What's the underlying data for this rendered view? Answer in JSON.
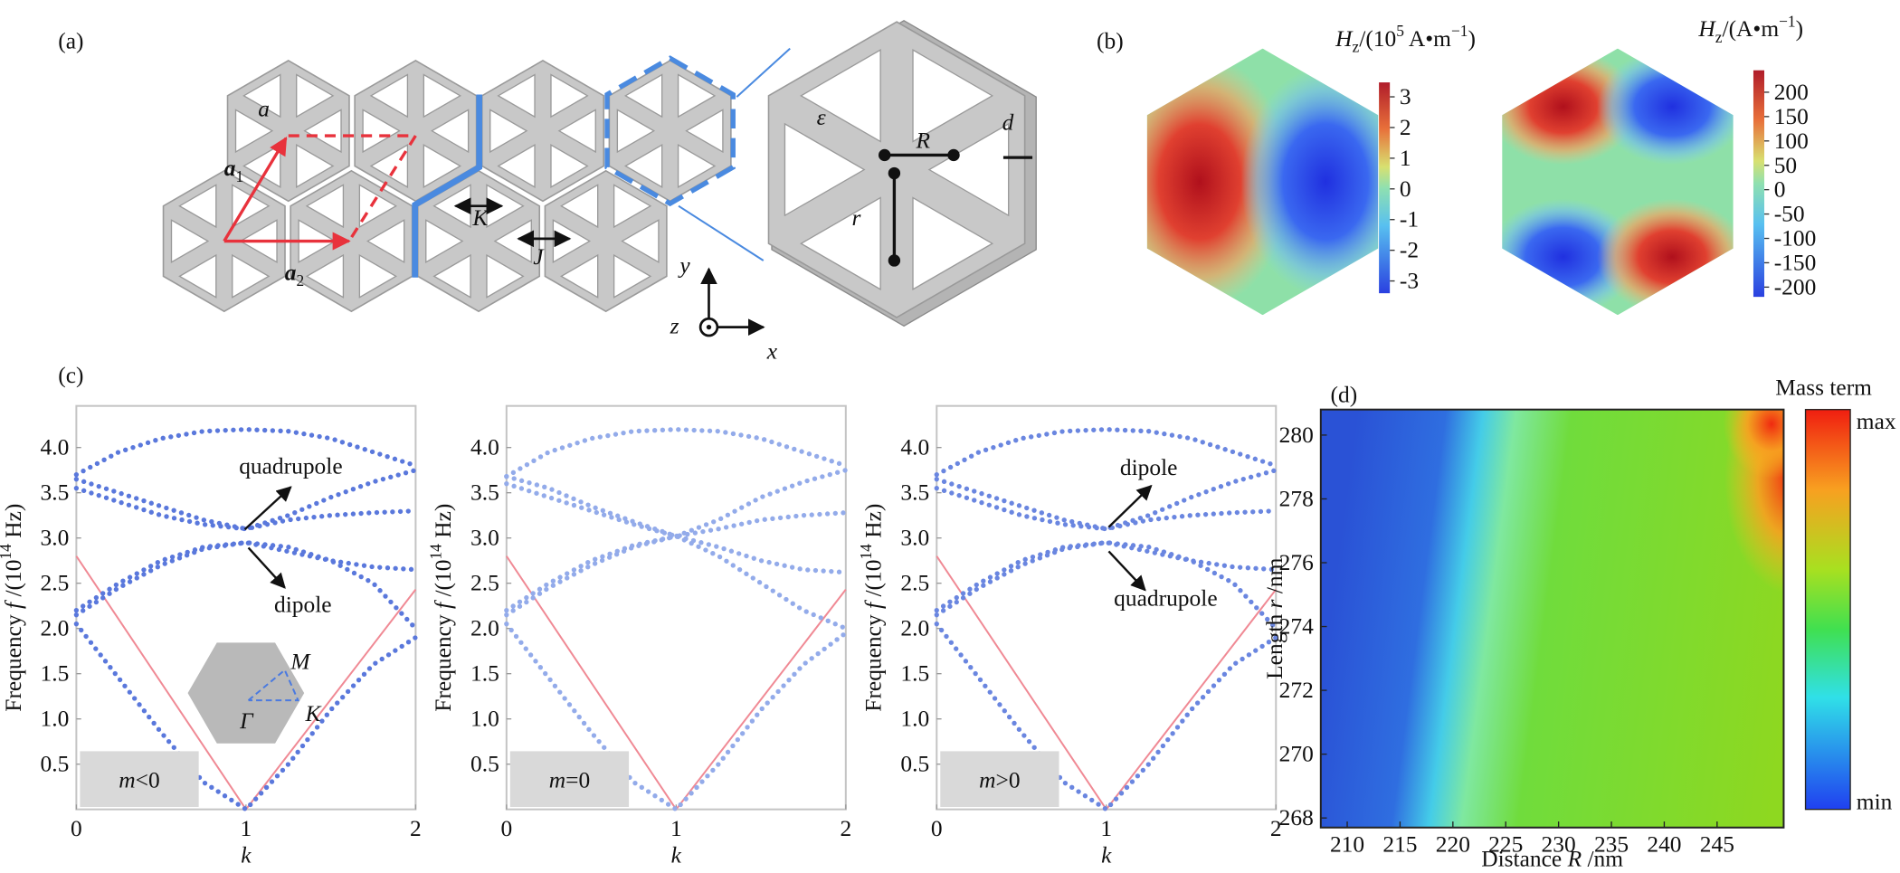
{
  "panel_labels": [
    "(a)",
    "(b)",
    "(c)",
    "(d)"
  ],
  "panel_a": {
    "labels": [
      [
        {
          "text": "a",
          "italic": true
        }
      ],
      [
        {
          "text": "a",
          "italic": true,
          "bold": true
        },
        {
          "text": "1",
          "sub": true
        }
      ],
      [
        {
          "text": "a",
          "italic": true,
          "bold": true
        },
        {
          "text": "2",
          "sub": true
        }
      ],
      [
        {
          "text": "K",
          "italic": true
        }
      ],
      [
        {
          "text": "J",
          "italic": true
        }
      ],
      [
        {
          "text": "y",
          "italic": true
        }
      ],
      [
        {
          "text": "z",
          "italic": true
        }
      ],
      [
        {
          "text": "x",
          "italic": true
        }
      ],
      [
        {
          "text": "ε",
          "italic": true
        }
      ],
      [
        {
          "text": "R",
          "italic": true
        }
      ],
      [
        {
          "text": "r",
          "italic": true
        }
      ],
      [
        {
          "text": "d",
          "italic": true
        }
      ]
    ]
  },
  "panel_b": {
    "maps": [
      {
        "title": [
          {
            "text": "H",
            "italic": true
          },
          {
            "text": "z",
            "sub": true
          },
          {
            "text": "/(10"
          },
          {
            "text": "5",
            "sup": true
          },
          {
            "text": " A•m"
          },
          {
            "text": "−1",
            "sup": true
          },
          {
            "text": ")"
          }
        ],
        "clim": [
          -3.4,
          3.47
        ],
        "ticks": [
          3,
          2,
          1,
          0,
          -1,
          -2,
          -3
        ]
      },
      {
        "title": [
          {
            "text": "H",
            "italic": true
          },
          {
            "text": "z",
            "sub": true
          },
          {
            "text": "/(A•m"
          },
          {
            "text": "−1",
            "sup": true
          },
          {
            "text": ")"
          }
        ],
        "clim": [
          -220,
          245
        ],
        "ticks": [
          200,
          150,
          100,
          50,
          0,
          -50,
          -100,
          -150,
          -200
        ]
      }
    ]
  },
  "chart_data": [
    {
      "type": "line",
      "ylabel": [
        {
          "text": "Frequency "
        },
        {
          "text": "f",
          "italic": true
        },
        {
          "text": " /(10"
        },
        {
          "text": "14",
          "sup": true
        },
        {
          "text": " Hz)"
        }
      ],
      "xlabel": [
        {
          "text": "k",
          "italic": true
        }
      ],
      "xlim": [
        0,
        2
      ],
      "xticks": [
        0,
        1,
        2
      ],
      "ylim": [
        0,
        4.46
      ],
      "yticks": [
        0.5,
        {
          "value": 1,
          "label": "1.0"
        },
        1.5,
        {
          "value": 2,
          "label": "2.0"
        },
        2.5,
        {
          "value": 3,
          "label": "3.0"
        },
        3.5,
        {
          "value": 4,
          "label": "4.0"
        }
      ],
      "x": [
        0,
        0.25,
        0.5,
        0.75,
        1,
        1.25,
        1.5,
        1.75,
        2
      ],
      "series": [
        {
          "color": "#5a78dc",
          "values": [
            2.05,
            1.45,
            0.85,
            0.3,
            0,
            0.5,
            1.1,
            1.6,
            1.9
          ]
        },
        {
          "color": "#5a78dc",
          "values": [
            2.2,
            2.5,
            2.75,
            2.9,
            2.95,
            2.9,
            2.75,
            2.5,
            2.0
          ]
        },
        {
          "color": "#5a78dc",
          "values": [
            2.15,
            2.45,
            2.7,
            2.88,
            2.95,
            2.85,
            2.75,
            2.68,
            2.65
          ]
        },
        {
          "color": "#5a78dc",
          "values": [
            3.55,
            3.4,
            3.25,
            3.15,
            3.1,
            3.2,
            3.25,
            3.28,
            3.3
          ]
        },
        {
          "color": "#5a78dc",
          "values": [
            3.65,
            3.5,
            3.35,
            3.2,
            3.1,
            3.25,
            3.45,
            3.62,
            3.75
          ]
        },
        {
          "color": "#5a78dc",
          "values": [
            3.7,
            3.95,
            4.1,
            4.18,
            4.2,
            4.18,
            4.1,
            3.95,
            3.8
          ]
        }
      ],
      "light_line": {
        "x": [
          0,
          1,
          2
        ],
        "values": [
          2.8,
          0,
          2.43
        ],
        "color": "#f08a95"
      },
      "box_label": [
        {
          "text": "m",
          "italic": true
        },
        {
          "text": "<0"
        }
      ],
      "annotations": [
        "quadrupole",
        "dipole"
      ],
      "inset_labels": [
        "M",
        "Γ",
        "K"
      ]
    },
    {
      "type": "line",
      "ylabel": [
        {
          "text": "Frequency "
        },
        {
          "text": "f",
          "italic": true
        },
        {
          "text": " /(10"
        },
        {
          "text": "14",
          "sup": true
        },
        {
          "text": " Hz)"
        }
      ],
      "xlabel": [
        {
          "text": "k",
          "italic": true
        }
      ],
      "xlim": [
        0,
        2
      ],
      "xticks": [
        0,
        1,
        2
      ],
      "ylim": [
        0,
        4.46
      ],
      "yticks": [
        0.5,
        {
          "value": 1,
          "label": "1.0"
        },
        1.5,
        {
          "value": 2,
          "label": "2.0"
        },
        2.5,
        {
          "value": 3,
          "label": "3.0"
        },
        3.5,
        {
          "value": 4,
          "label": "4.0"
        }
      ],
      "x": [
        0,
        0.25,
        0.5,
        0.75,
        1,
        1.25,
        1.5,
        1.75,
        2
      ],
      "series": [
        {
          "color": "#93abea",
          "values": [
            2.05,
            1.45,
            0.85,
            0.3,
            0,
            0.5,
            1.1,
            1.6,
            1.95
          ]
        },
        {
          "color": "#93abea",
          "values": [
            2.15,
            2.45,
            2.7,
            2.9,
            3.02,
            3.2,
            3.45,
            3.62,
            3.75
          ]
        },
        {
          "color": "#93abea",
          "values": [
            2.2,
            2.5,
            2.75,
            2.92,
            3.02,
            2.9,
            2.75,
            2.65,
            2.62
          ]
        },
        {
          "color": "#93abea",
          "values": [
            3.6,
            3.45,
            3.3,
            3.15,
            3.02,
            3.1,
            3.2,
            3.25,
            3.28
          ]
        },
        {
          "color": "#93abea",
          "values": [
            3.68,
            3.55,
            3.35,
            3.18,
            3.02,
            2.8,
            2.5,
            2.2,
            2.0
          ]
        },
        {
          "color": "#93abea",
          "values": [
            3.68,
            3.95,
            4.1,
            4.18,
            4.2,
            4.18,
            4.1,
            3.95,
            3.8
          ]
        }
      ],
      "light_line": {
        "x": [
          0,
          1,
          2
        ],
        "values": [
          2.8,
          0,
          2.43
        ],
        "color": "#f08a95"
      },
      "box_label": [
        {
          "text": "m",
          "italic": true
        },
        {
          "text": "=0"
        }
      ]
    },
    {
      "type": "line",
      "ylabel": [
        {
          "text": "Frequency "
        },
        {
          "text": "f",
          "italic": true
        },
        {
          "text": " /(10"
        },
        {
          "text": "14",
          "sup": true
        },
        {
          "text": " Hz)"
        }
      ],
      "xlabel": [
        {
          "text": "k",
          "italic": true
        }
      ],
      "xlim": [
        0,
        2
      ],
      "xticks": [
        0,
        1,
        2
      ],
      "ylim": [
        0,
        4.46
      ],
      "yticks": [
        0.5,
        {
          "value": 1,
          "label": "1.0"
        },
        1.5,
        {
          "value": 2,
          "label": "2.0"
        },
        2.5,
        {
          "value": 3,
          "label": "3.0"
        },
        3.5,
        {
          "value": 4,
          "label": "4.0"
        }
      ],
      "x": [
        0,
        0.25,
        0.5,
        0.75,
        1,
        1.25,
        1.5,
        1.75,
        2
      ],
      "series": [
        {
          "color": "#6a86e0",
          "values": [
            2.05,
            1.45,
            0.85,
            0.3,
            0,
            0.5,
            1.1,
            1.6,
            1.9
          ]
        },
        {
          "color": "#6a86e0",
          "values": [
            2.2,
            2.5,
            2.75,
            2.9,
            2.95,
            2.9,
            2.75,
            2.5,
            2.0
          ]
        },
        {
          "color": "#6a86e0",
          "values": [
            2.15,
            2.45,
            2.7,
            2.88,
            2.95,
            2.85,
            2.75,
            2.68,
            2.65
          ]
        },
        {
          "color": "#6a86e0",
          "values": [
            3.55,
            3.4,
            3.25,
            3.15,
            3.1,
            3.2,
            3.25,
            3.28,
            3.3
          ]
        },
        {
          "color": "#6a86e0",
          "values": [
            3.65,
            3.5,
            3.35,
            3.2,
            3.1,
            3.25,
            3.45,
            3.62,
            3.75
          ]
        },
        {
          "color": "#6a86e0",
          "values": [
            3.7,
            3.95,
            4.1,
            4.18,
            4.2,
            4.18,
            4.1,
            3.95,
            3.8
          ]
        }
      ],
      "light_line": {
        "x": [
          0,
          1,
          2
        ],
        "values": [
          2.8,
          0,
          2.43
        ],
        "color": "#f08a95"
      },
      "box_label": [
        {
          "text": "m",
          "italic": true
        },
        {
          "text": ">0"
        }
      ],
      "annotations": [
        "dipole",
        "quadrupole"
      ]
    },
    {
      "type": "heatmap",
      "title": "Mass term",
      "xlabel": [
        {
          "text": "Distance "
        },
        {
          "text": "R",
          "italic": true
        },
        {
          "text": " /nm"
        }
      ],
      "ylabel": [
        {
          "text": "Length "
        },
        {
          "text": "r",
          "italic": true
        },
        {
          "text": " /nm"
        }
      ],
      "xlim": [
        207.5,
        251.3
      ],
      "xticks": [
        210,
        215,
        220,
        225,
        230,
        235,
        240,
        245
      ],
      "ylim": [
        267.7,
        280.8
      ],
      "yticks": [
        268,
        270,
        272,
        274,
        276,
        278,
        280
      ],
      "colorbar_labels": [
        "max",
        "min"
      ]
    }
  ]
}
